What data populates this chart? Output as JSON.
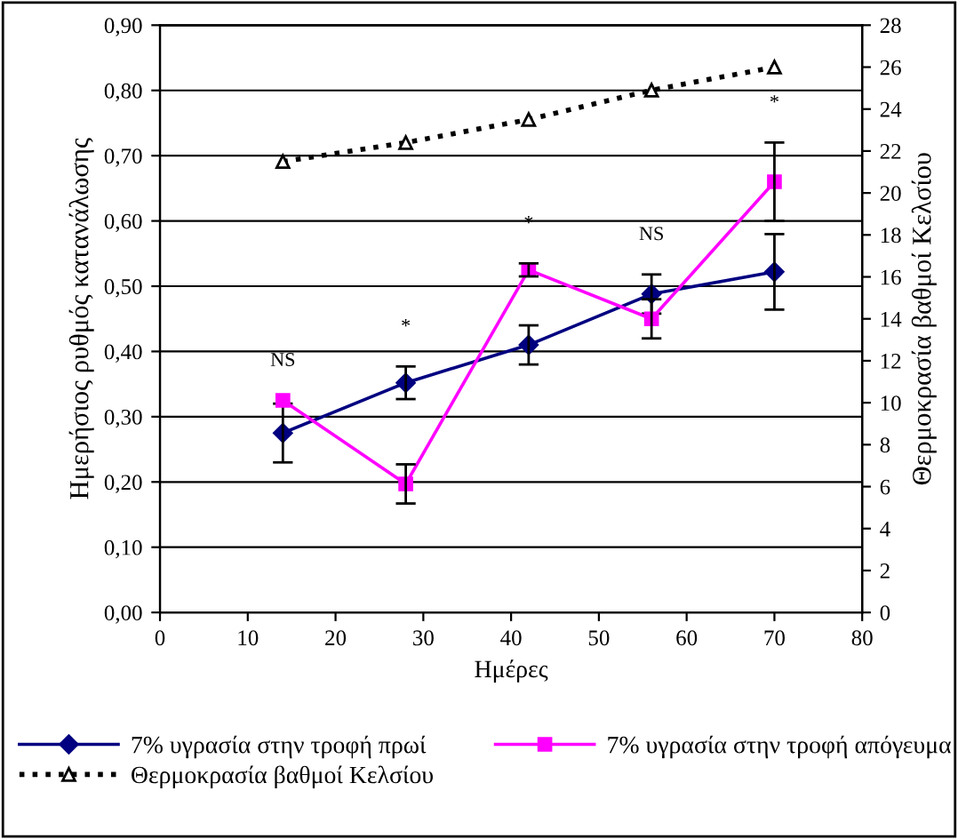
{
  "chart_data": {
    "type": "line",
    "xlabel": "Ημέρες",
    "ylabel": "Ημερήσιος ρυθμός κατανάλωσης",
    "y2label": "Θερμοκρασία βαθμοί Κελσίου",
    "xlim": [
      0,
      80
    ],
    "xticks": [
      0,
      10,
      20,
      30,
      40,
      50,
      60,
      70,
      80
    ],
    "ylim": [
      0,
      0.9
    ],
    "yticks": [
      {
        "value": 0,
        "label": "0,00"
      },
      {
        "value": 0.1,
        "label": "0,10"
      },
      {
        "value": 0.2,
        "label": "0,20"
      },
      {
        "value": 0.3,
        "label": "0,30"
      },
      {
        "value": 0.4,
        "label": "0,40"
      },
      {
        "value": 0.5,
        "label": "0,50"
      },
      {
        "value": 0.6,
        "label": "0,60"
      },
      {
        "value": 0.7,
        "label": "0,70"
      },
      {
        "value": 0.8,
        "label": "0,80"
      },
      {
        "value": 0.9,
        "label": "0,90"
      }
    ],
    "y2lim": [
      0,
      28
    ],
    "y2ticks": [
      0,
      2,
      4,
      6,
      8,
      10,
      12,
      14,
      16,
      18,
      20,
      22,
      24,
      26,
      28
    ],
    "grid": "y",
    "legend": "bottom",
    "x": [
      14,
      28,
      42,
      56,
      70
    ],
    "series": [
      {
        "name": "7% υγρασία στην τροφή πρωί",
        "color": "#000080",
        "marker": "diamond",
        "line_style": "solid",
        "values": [
          0.275,
          0.352,
          0.41,
          0.488,
          0.522
        ],
        "errors": [
          0.045,
          0.025,
          0.03,
          0.03,
          0.058
        ]
      },
      {
        "name": "7% υγρασία στην τροφή απόγευμα",
        "color": "#ff00ff",
        "marker": "square",
        "line_style": "solid",
        "values": [
          0.325,
          0.197,
          0.525,
          0.45,
          0.66
        ],
        "errors": [
          null,
          0.03,
          0.01,
          0.03,
          0.06
        ]
      },
      {
        "name": "Θερμοκρασία βαθμοί Κελσίου",
        "color": "#000000",
        "marker": "triangle",
        "line_style": "dotted",
        "axis": "y2",
        "values": [
          21.5,
          22.4,
          23.5,
          24.9,
          26.0
        ]
      }
    ],
    "annotations": [
      "NS",
      "*",
      "*",
      "NS",
      "*"
    ]
  }
}
